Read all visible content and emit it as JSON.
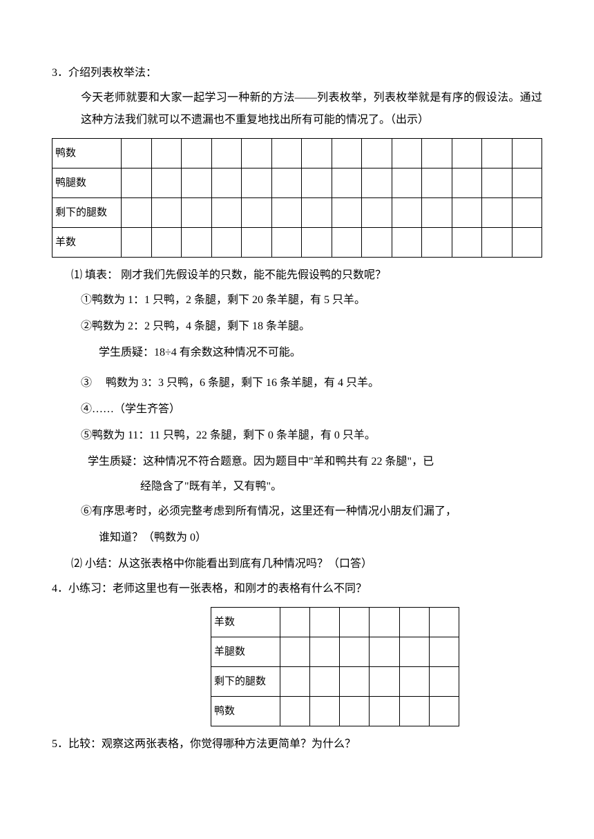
{
  "section3": {
    "number": "3．",
    "title": "介绍列表枚举法：",
    "para1": "今天老师就要和大家一起学习一种新的方法——列表枚举，列表枚举就是有序的假设法。通过这种方法我们就可以不遗漏也不重复地找出所有可能的情况了。（出示）"
  },
  "table1": {
    "rows": [
      "鸭数",
      "鸭腿数",
      "剩下的腿数",
      "羊数"
    ],
    "cols": 14
  },
  "fillTable": {
    "label": "⑴ 填表：",
    "text": "刚才我们先假设羊的只数，能不能先假设鸭的只数呢？",
    "item1": "①鸭数为 1：1 只鸭，2 条腿，剩下 20 条羊腿，有 5 只羊。",
    "item2": "②鸭数为 2：2 只鸭，4 条腿，剩下 18 条羊腿。",
    "item2note": "学生质疑：18÷4 有余数这种情况不可能。",
    "item3": "③　 鸭数为 3：3 只鸭，6 条腿，剩下 16 条羊腿，有 4 只羊。",
    "item4": "④……（学生齐答）",
    "item5": "⑤鸭数为 11：11 只鸭，22 条腿，剩下 0 条羊腿，有 0 只羊。",
    "item5note1": "学生质疑：这种情况不符合题意。因为题目中\"羊和鸭共有 22 条腿\"，已",
    "item5note2": "经隐含了\"既有羊，又有鸭\"。",
    "item6": "⑥有序思考时，必须完整考虑到所有情况，这里还有一种情况小朋友们漏了，",
    "item6note": "谁知道？（鸭数为 0）"
  },
  "summary": {
    "label": "⑵ 小结：",
    "text": "从这张表格中你能看出到底有几种情况吗？（口答）"
  },
  "section4": {
    "number": "4．",
    "title": "小练习：",
    "text": "老师这里也有一张表格，和刚才的表格有什么不同？"
  },
  "table2": {
    "rows": [
      "羊数",
      "羊腿数",
      "剩下的腿数",
      "鸭数"
    ],
    "cols": 6
  },
  "section5": {
    "number": "5．",
    "title": "比较：",
    "text": "观察这两张表格，你觉得哪种方法更简单？为什么？"
  }
}
